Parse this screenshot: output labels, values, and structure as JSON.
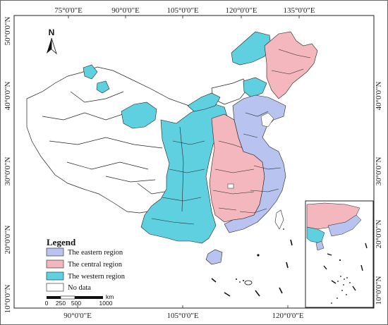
{
  "map": {
    "top_ticks": [
      "75°0'0\"E",
      "90°0'0\"E",
      "105°0'0\"E",
      "120°0'0\"E",
      "135°0'0\"E"
    ],
    "bottom_ticks": [
      "90°0'0\"E",
      "105°0'0\"E",
      "120°0'0\"E"
    ],
    "left_ticks": [
      "50°0'0\"N",
      "40°0'0\"N",
      "30°0'0\"N",
      "20°0'0\"N",
      "10°0'0\"N"
    ],
    "right_ticks": [
      "40°0'0\"N",
      "30°0'0\"N"
    ],
    "inset_ticks": [
      "20°0'0\"N",
      "10°0'0\"N"
    ],
    "north_label": "N"
  },
  "legend": {
    "title": "Legend",
    "items": [
      {
        "label": "The eastern region",
        "color": "#b8c4ef"
      },
      {
        "label": "The central region",
        "color": "#f3b7bd"
      },
      {
        "label": "The western region",
        "color": "#5fd0e0"
      },
      {
        "label": "No data",
        "color": "#ffffff"
      }
    ]
  },
  "scale": {
    "unit": "km",
    "labels": [
      "0",
      "250",
      "500",
      "1000"
    ]
  }
}
